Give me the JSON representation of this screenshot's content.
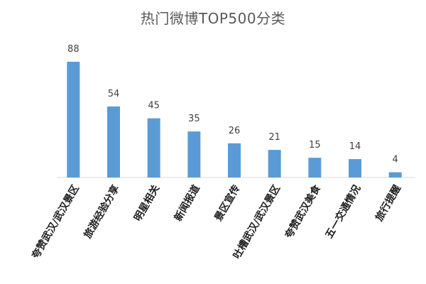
{
  "chart_data": {
    "type": "bar",
    "title": "热门微博TOP500分类",
    "categories": [
      "夸赞武汉/武汉景区",
      "旅游经验分享",
      "明星相关",
      "新闻报道",
      "景区宣传",
      "吐槽武汉/武汉景区",
      "夸赞武汉美食",
      "五一交通情况",
      "旅行提醒"
    ],
    "values": [
      88,
      54,
      45,
      35,
      26,
      21,
      15,
      14,
      4
    ],
    "bar_color": "#5b9bd5",
    "ylim": [
      0,
      88
    ],
    "grid": false,
    "legend": "none",
    "data_labels": true
  }
}
